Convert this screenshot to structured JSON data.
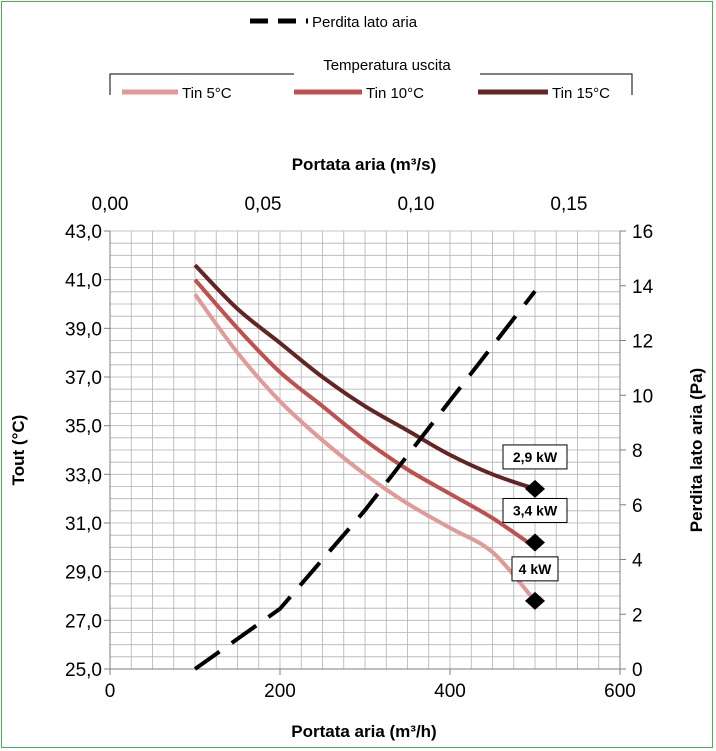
{
  "chart_data": {
    "type": "line",
    "xlabel": "Portata aria (m³/h)",
    "x2label": "Portata aria (m³/s)",
    "ylabel": "Tout (°C)",
    "y2label": "Perdita lato aria (Pa)",
    "xlim": [
      0,
      600
    ],
    "x2lim": [
      0,
      0.1667
    ],
    "ylim": [
      25,
      43
    ],
    "y2lim": [
      0,
      16
    ],
    "x_ticks": [
      "0",
      "200",
      "400",
      "600"
    ],
    "x2_ticks": [
      "0,00",
      "0,05",
      "0,10",
      "0,15"
    ],
    "y_ticks": [
      "25,0",
      "27,0",
      "29,0",
      "31,0",
      "33,0",
      "35,0",
      "37,0",
      "39,0",
      "41,0",
      "43,0"
    ],
    "y2_ticks": [
      "0",
      "2",
      "4",
      "6",
      "8",
      "10",
      "12",
      "14",
      "16"
    ],
    "grid": true,
    "legend_position": "top",
    "legend_group_title": "Temperatura uscita",
    "series": [
      {
        "name": "Tin 5°C",
        "axis": "left",
        "color": "#e09a97",
        "style": "solid",
        "x": [
          100,
          150,
          200,
          250,
          300,
          350,
          400,
          450,
          500
        ],
        "y": [
          40.4,
          38.0,
          36.0,
          34.4,
          33.0,
          31.8,
          30.8,
          29.8,
          27.8
        ]
      },
      {
        "name": "Tin 10°C",
        "axis": "left",
        "color": "#c0504d",
        "style": "solid",
        "x": [
          100,
          150,
          200,
          250,
          300,
          350,
          400,
          450,
          500
        ],
        "y": [
          41.0,
          39.0,
          37.2,
          35.8,
          34.4,
          33.2,
          32.2,
          31.2,
          30.0
        ]
      },
      {
        "name": "Tin 15°C",
        "axis": "left",
        "color": "#632423",
        "style": "solid",
        "x": [
          100,
          150,
          200,
          250,
          300,
          350,
          400,
          450,
          500
        ],
        "y": [
          41.6,
          39.8,
          38.4,
          37.0,
          35.8,
          34.8,
          33.8,
          33.0,
          32.4
        ]
      },
      {
        "name": "Perdita lato aria",
        "axis": "right",
        "color": "#000000",
        "style": "dashed",
        "x": [
          100,
          200,
          300,
          400,
          500
        ],
        "y2": [
          0,
          2.2,
          5.8,
          9.8,
          13.8
        ]
      }
    ],
    "annotations": [
      {
        "text": "4 kW",
        "x": 500,
        "y": 27.8
      },
      {
        "text": "3,4 kW",
        "x": 500,
        "y": 30.2
      },
      {
        "text": "2,9 kW",
        "x": 500,
        "y": 32.4
      }
    ]
  }
}
